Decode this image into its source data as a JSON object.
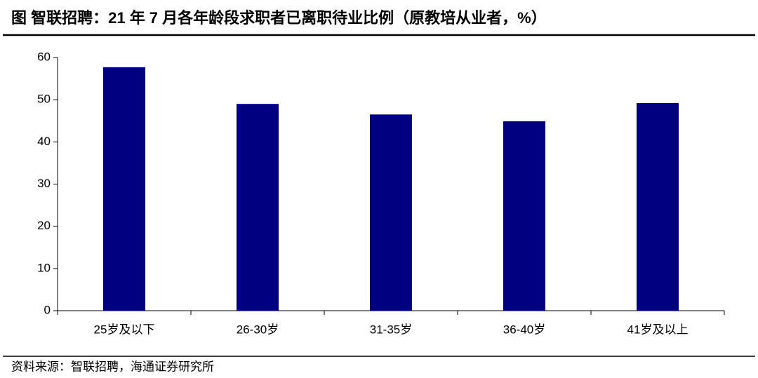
{
  "chart_data": {
    "type": "bar",
    "title": "图  智联招聘：21 年 7 月各年龄段求职者已离职待业比例（原教培从业者，%）",
    "source": "资料来源：智联招聘，海通证券研究所",
    "categories": [
      "25岁及以下",
      "26-30岁",
      "31-35岁",
      "36-40岁",
      "41岁及以上"
    ],
    "values": [
      57.7,
      49.0,
      46.5,
      44.9,
      49.2
    ],
    "color": "#000080",
    "ylim": [
      0,
      60
    ],
    "yticks": [
      0,
      10,
      20,
      30,
      40,
      50,
      60
    ],
    "grid": false
  }
}
